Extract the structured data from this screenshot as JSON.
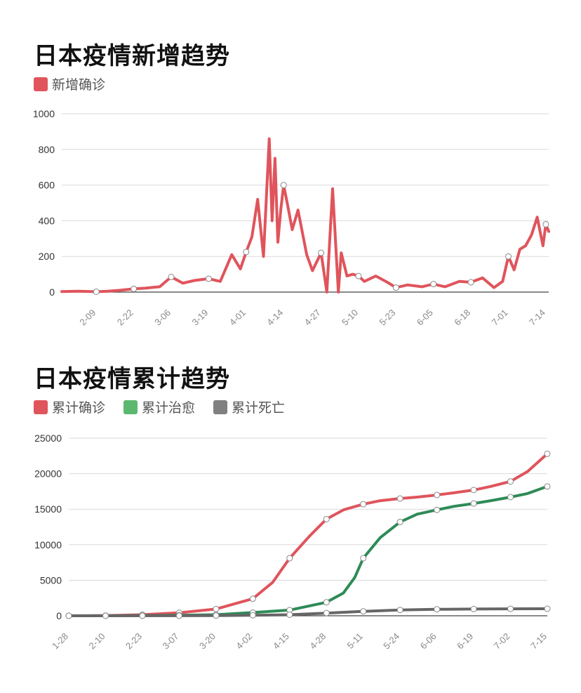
{
  "charts": {
    "daily": {
      "title": "日本疫情新增趋势",
      "legend": [
        {
          "label": "新增确诊",
          "color": "#e0545c"
        }
      ]
    },
    "cumulative": {
      "title": "日本疫情累计趋势",
      "legend": [
        {
          "label": "累计确诊",
          "color": "#e0545c"
        },
        {
          "label": "累计治愈",
          "color": "#5cb86e"
        },
        {
          "label": "累计死亡",
          "color": "#808080"
        }
      ]
    }
  },
  "chart_data": [
    {
      "type": "line",
      "title": "日本疫情新增趋势",
      "ylim": [
        0,
        1000
      ],
      "yticks": [
        0,
        200,
        400,
        600,
        800,
        1000
      ],
      "grid": true,
      "legend_position": "top-left",
      "x_tick_labels": [
        "2-09",
        "2-22",
        "3-06",
        "3-19",
        "4-01",
        "4-14",
        "4-27",
        "5-10",
        "5-23",
        "6-05",
        "6-18",
        "7-01",
        "7-14"
      ],
      "series": [
        {
          "name": "新增确诊",
          "color": "#e0545c",
          "x": [
            "1-28",
            "2-03",
            "2-09",
            "2-13",
            "2-17",
            "2-22",
            "2-26",
            "3-02",
            "3-06",
            "3-10",
            "3-14",
            "3-19",
            "3-23",
            "3-27",
            "3-30",
            "4-01",
            "4-03",
            "4-05",
            "4-07",
            "4-09",
            "4-10",
            "4-11",
            "4-12",
            "4-13",
            "4-14",
            "4-15",
            "4-17",
            "4-19",
            "4-22",
            "4-24",
            "4-27",
            "4-29",
            "5-01",
            "5-03",
            "5-04",
            "5-06",
            "5-08",
            "5-10",
            "5-12",
            "5-16",
            "5-20",
            "5-23",
            "5-27",
            "6-01",
            "6-05",
            "6-09",
            "6-14",
            "6-18",
            "6-22",
            "6-26",
            "6-29",
            "7-01",
            "7-03",
            "7-05",
            "7-07",
            "7-09",
            "7-11",
            "7-13",
            "7-14",
            "7-15"
          ],
          "values": [
            3,
            5,
            2,
            5,
            10,
            18,
            22,
            30,
            85,
            50,
            65,
            75,
            60,
            210,
            130,
            225,
            310,
            520,
            200,
            860,
            400,
            750,
            280,
            460,
            600,
            520,
            350,
            460,
            210,
            120,
            220,
            0,
            580,
            0,
            220,
            90,
            100,
            90,
            60,
            90,
            55,
            25,
            40,
            30,
            45,
            30,
            60,
            55,
            80,
            25,
            60,
            200,
            125,
            240,
            260,
            320,
            420,
            260,
            380,
            340
          ],
          "markers_at": [
            "2-09",
            "2-22",
            "3-06",
            "3-19",
            "4-01",
            "4-14",
            "4-27",
            "5-10",
            "5-23",
            "6-05",
            "6-18",
            "7-01",
            "7-14"
          ]
        }
      ]
    },
    {
      "type": "line",
      "title": "日本疫情累计趋势",
      "ylim": [
        0,
        25000
      ],
      "yticks": [
        0,
        5000,
        10000,
        15000,
        20000,
        25000
      ],
      "grid": true,
      "legend_position": "top-left",
      "x_tick_labels": [
        "1-28",
        "2-10",
        "2-23",
        "3-07",
        "3-20",
        "4-02",
        "4-15",
        "4-28",
        "5-11",
        "5-24",
        "6-06",
        "6-19",
        "7-02",
        "7-15"
      ],
      "series": [
        {
          "name": "累计确诊",
          "color": "#e0545c",
          "x": [
            "1-28",
            "2-10",
            "2-23",
            "3-07",
            "3-20",
            "4-02",
            "4-09",
            "4-15",
            "4-22",
            "4-28",
            "5-04",
            "5-11",
            "5-17",
            "5-24",
            "5-30",
            "6-06",
            "6-12",
            "6-19",
            "6-25",
            "7-02",
            "7-08",
            "7-15"
          ],
          "values": [
            0,
            30,
            150,
            420,
            950,
            2400,
            4700,
            8100,
            11200,
            13600,
            14900,
            15700,
            16200,
            16500,
            16700,
            17000,
            17300,
            17700,
            18200,
            18900,
            20300,
            22800
          ]
        },
        {
          "name": "累计治愈",
          "color": "#2e8b57",
          "x": [
            "1-28",
            "2-10",
            "2-23",
            "3-07",
            "3-20",
            "4-02",
            "4-15",
            "4-28",
            "5-04",
            "5-08",
            "5-11",
            "5-17",
            "5-24",
            "5-30",
            "6-06",
            "6-12",
            "6-19",
            "6-25",
            "7-02",
            "7-08",
            "7-15"
          ],
          "values": [
            0,
            5,
            30,
            80,
            150,
            450,
            800,
            1900,
            3200,
            5400,
            8100,
            11000,
            13200,
            14300,
            14900,
            15400,
            15800,
            16200,
            16700,
            17200,
            18200
          ]
        },
        {
          "name": "累计死亡",
          "color": "#666666",
          "x": [
            "1-28",
            "2-10",
            "2-23",
            "3-07",
            "3-20",
            "4-02",
            "4-15",
            "4-28",
            "5-11",
            "5-24",
            "6-06",
            "6-19",
            "7-02",
            "7-15"
          ],
          "values": [
            0,
            0,
            5,
            10,
            30,
            70,
            150,
            380,
            620,
            820,
            910,
            950,
            980,
            985
          ]
        }
      ]
    }
  ]
}
